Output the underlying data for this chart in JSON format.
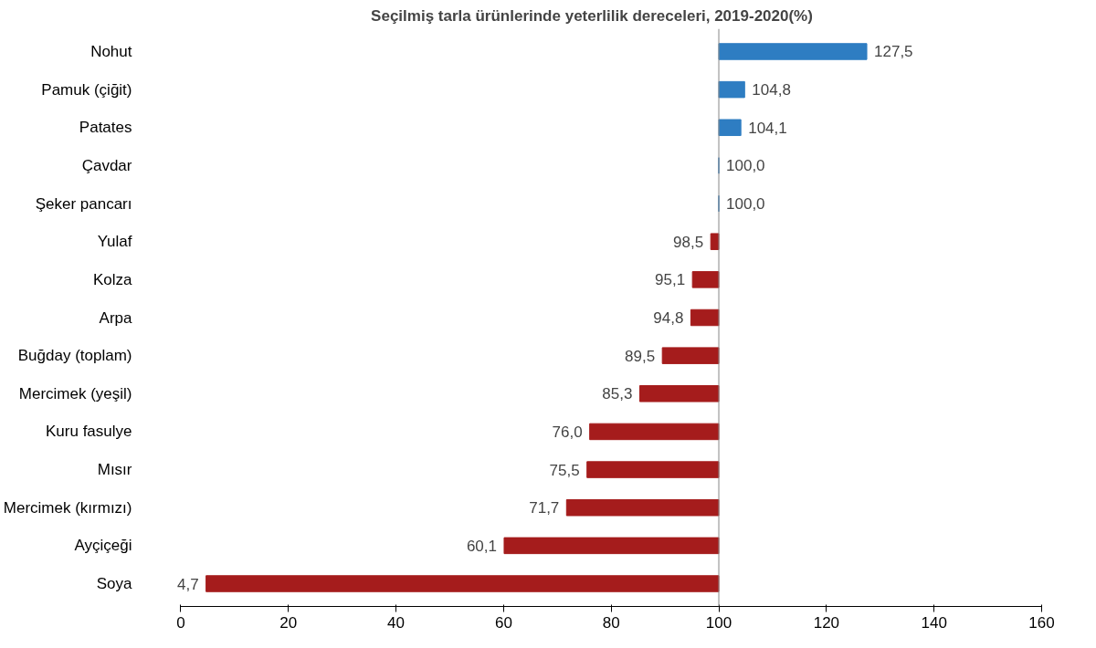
{
  "chart_data": {
    "type": "bar",
    "orientation": "horizontal",
    "title": "Seçilmiş tarla ürünlerinde yeterlilik dereceleri, 2019-2020(%)",
    "categories": [
      "Nohut",
      "Pamuk (çiğit)",
      "Patates",
      "Çavdar",
      "Şeker pancarı",
      "Yulaf",
      "Kolza",
      "Arpa",
      "Buğday (toplam)",
      "Mercimek (yeşil)",
      "Kuru fasulye",
      "Mısır",
      "Mercimek (kırmızı)",
      "Ayçiçeği",
      "Soya"
    ],
    "base": [
      100,
      100,
      100,
      100,
      100,
      100,
      100,
      100,
      100,
      100,
      100,
      100,
      100,
      100,
      100
    ],
    "values": [
      27.5,
      4.8,
      4.1,
      0,
      0,
      -1.5,
      -4.9,
      -5.2,
      -10.5,
      -14.7,
      -24,
      -24.5,
      -28.3,
      -39.9,
      -95.3
    ],
    "value_labels": [
      "127,5",
      "104,8",
      "104,1",
      "100,0",
      "100,0",
      "98,5",
      "95,1",
      "94,8",
      "89,5",
      "85,3",
      "76,0",
      "75,5",
      "71,7",
      "60,1",
      "4,7"
    ],
    "colors": [
      "#2e7dc2",
      "#2e7dc2",
      "#2e7dc2",
      "#2e7dc2",
      "#2e7dc2",
      "#a51c1c",
      "#a51c1c",
      "#a51c1c",
      "#a51c1c",
      "#a51c1c",
      "#a51c1c",
      "#a51c1c",
      "#a51c1c",
      "#a51c1c",
      "#a51c1c"
    ],
    "ref_lines": [
      {
        "axis": "x",
        "value": 100,
        "color": "#888888"
      }
    ],
    "xlim": [
      0,
      160
    ],
    "xticks": [
      0,
      20,
      40,
      60,
      80,
      100,
      120,
      140,
      160
    ],
    "grid": false,
    "legend": false
  }
}
